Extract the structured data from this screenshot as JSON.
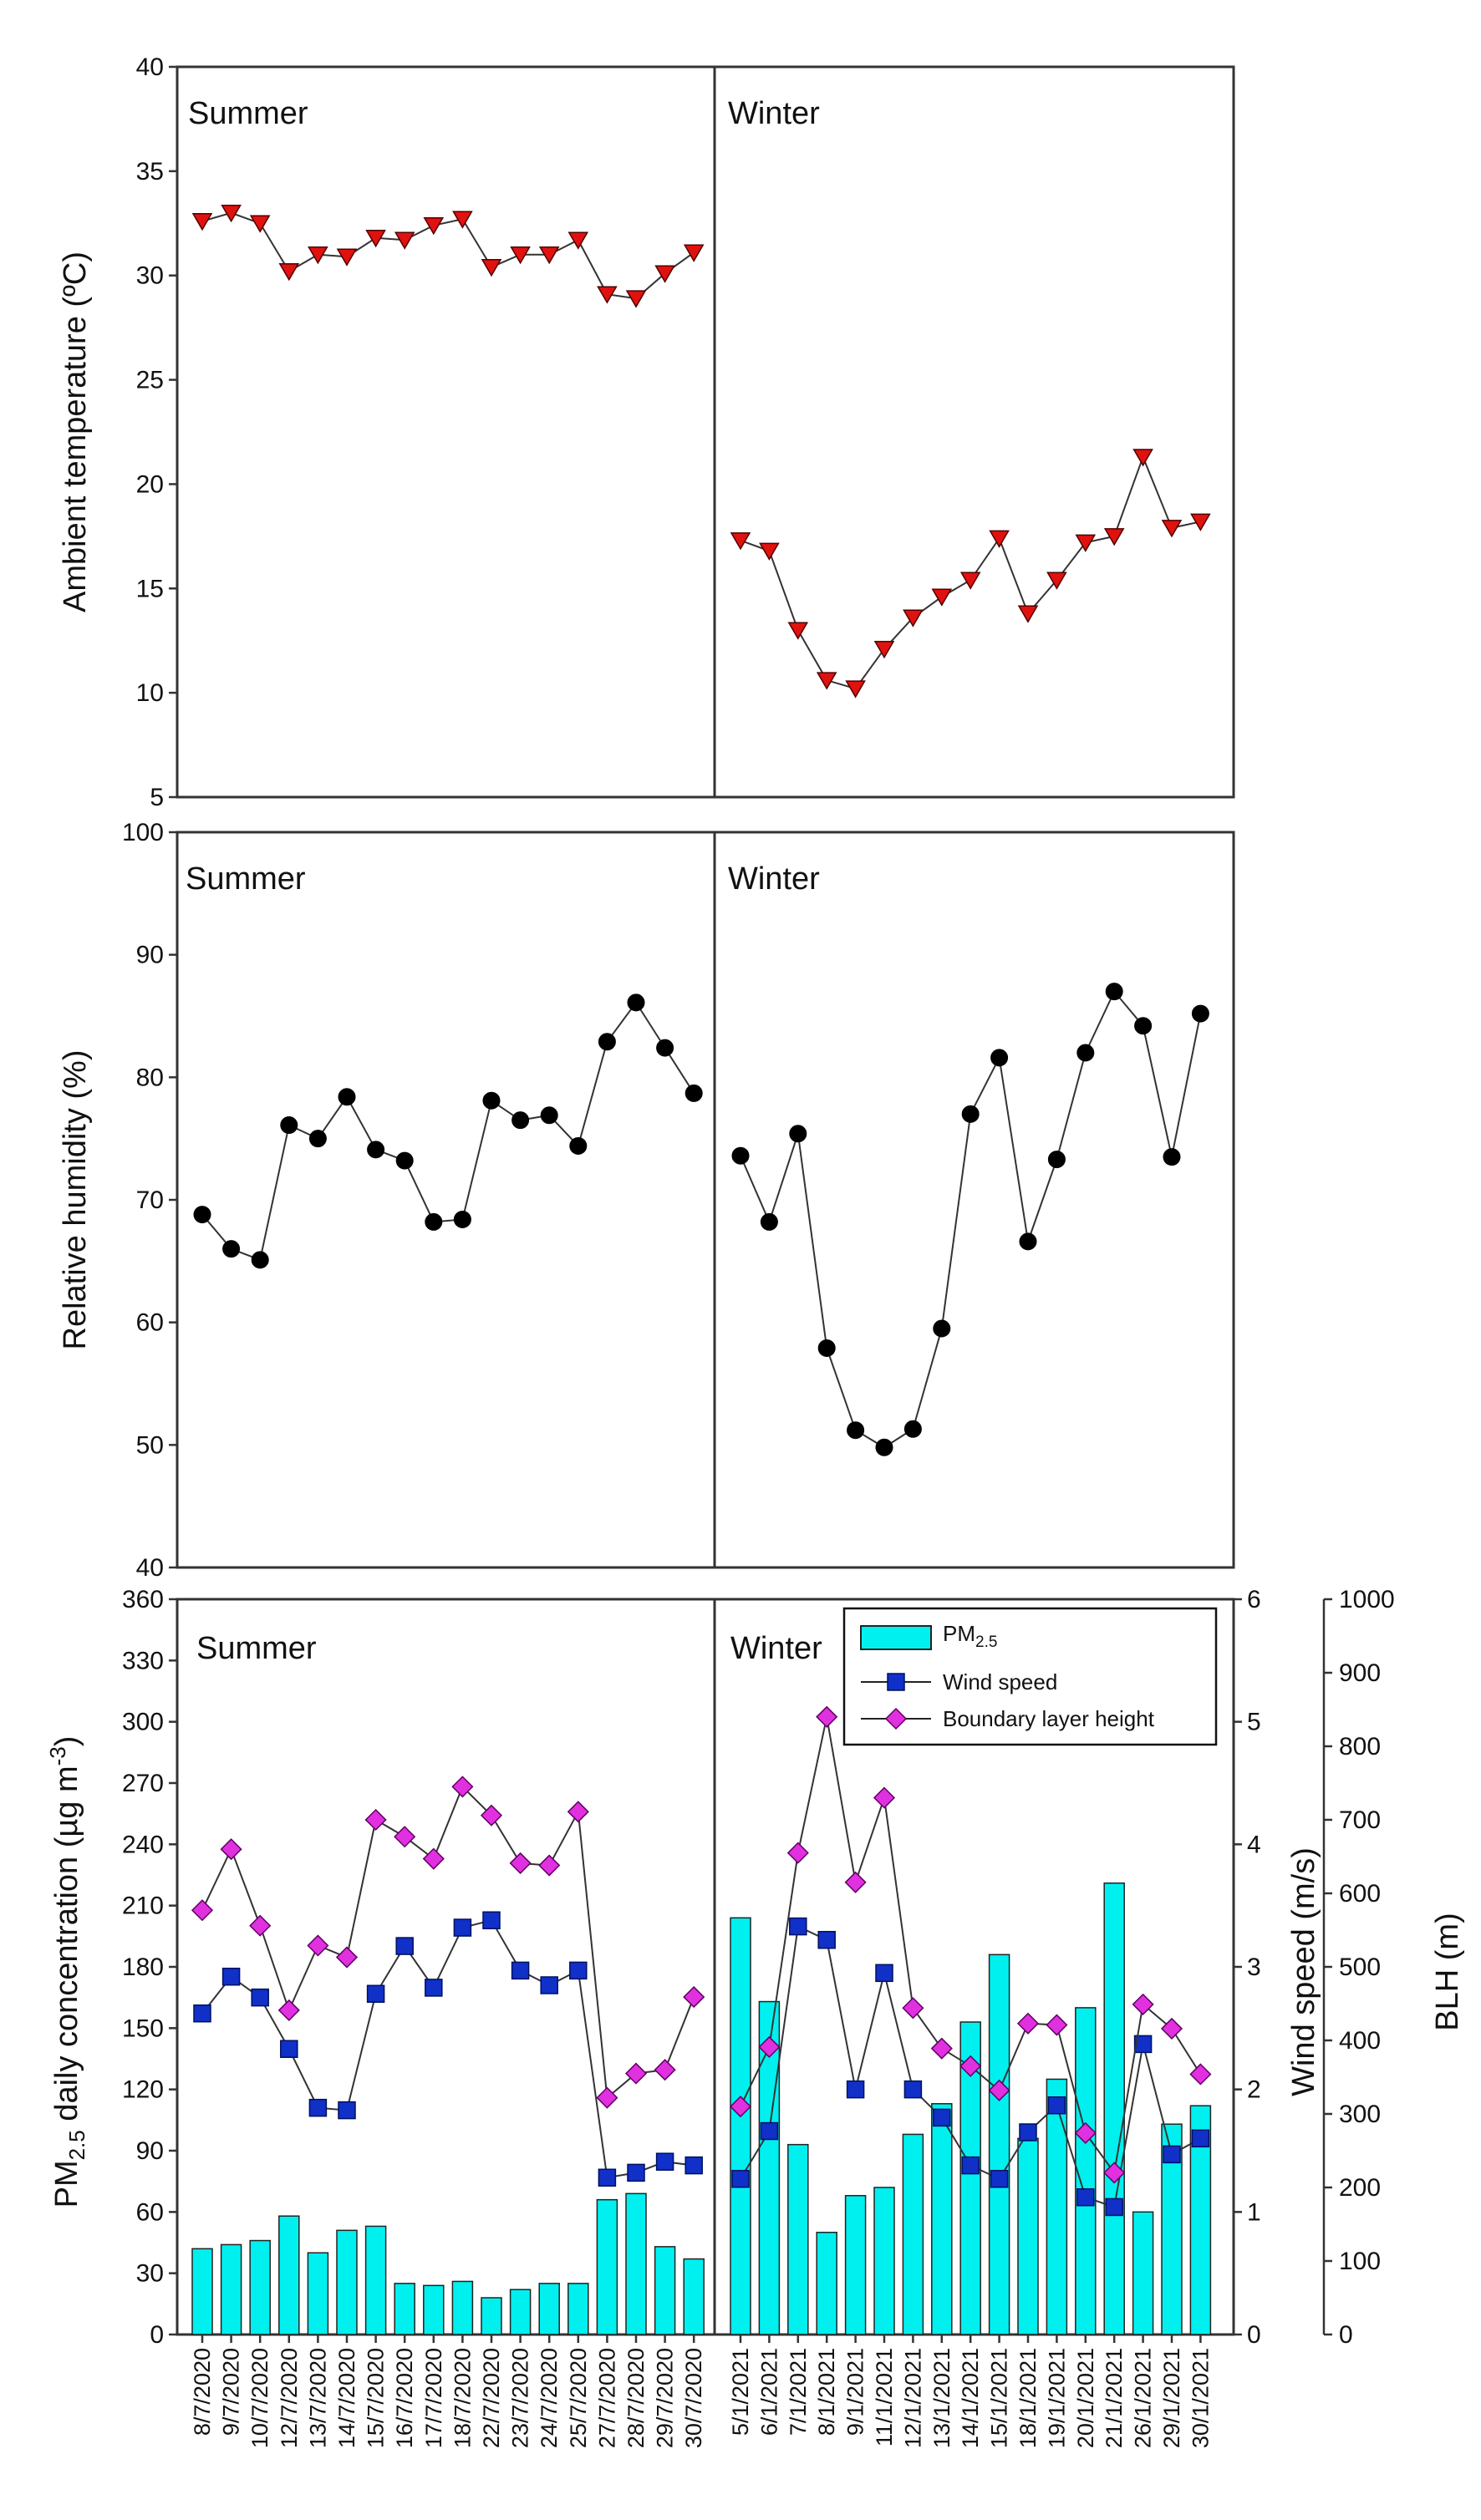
{
  "chart_data": [
    {
      "type": "line",
      "panel": "top",
      "ylabel": "Ambient temperature (ºC)",
      "ylim": [
        5,
        40
      ],
      "yticks": [
        5,
        10,
        15,
        20,
        25,
        30,
        35,
        40
      ],
      "season_labels": [
        "Summer",
        "Winter"
      ],
      "series": [
        {
          "name": "Ambient temperature",
          "marker": "triangle-down",
          "color": "#e0120f",
          "summer": [
            32.6,
            33.0,
            32.5,
            30.2,
            31.0,
            30.9,
            31.8,
            31.7,
            32.4,
            32.7,
            30.4,
            31.0,
            31.0,
            31.7,
            29.1,
            28.9,
            30.1,
            31.1
          ],
          "winter": [
            17.3,
            16.8,
            13.0,
            10.6,
            10.2,
            12.1,
            13.6,
            14.6,
            15.4,
            17.4,
            13.8,
            15.4,
            17.2,
            17.5,
            21.3,
            17.9,
            18.2
          ]
        }
      ]
    },
    {
      "type": "line",
      "panel": "middle",
      "ylabel": "Relative humidity (%)",
      "ylim": [
        40,
        100
      ],
      "yticks": [
        40,
        50,
        60,
        70,
        80,
        90,
        100
      ],
      "season_labels": [
        "Summer",
        "Winter"
      ],
      "series": [
        {
          "name": "Relative humidity",
          "marker": "circle",
          "color": "#000000",
          "summer": [
            68.8,
            66.0,
            65.1,
            76.1,
            75.0,
            78.4,
            74.1,
            73.2,
            68.2,
            68.4,
            78.1,
            76.5,
            76.9,
            74.4,
            82.9,
            86.1,
            82.4,
            78.7
          ],
          "winter": [
            73.6,
            68.2,
            75.4,
            57.9,
            51.2,
            49.8,
            51.3,
            59.5,
            77.0,
            81.6,
            66.6,
            73.3,
            82.0,
            87.0,
            84.2,
            73.5,
            85.2
          ]
        }
      ]
    },
    {
      "type": "bar",
      "panel": "bottom",
      "ylabel": "PM2.5 daily concentration (µg m-3)",
      "ylabel_parts": [
        "PM",
        "2.5",
        " daily concentration (µg m",
        "-3",
        ")"
      ],
      "ylim": [
        0,
        360
      ],
      "yticks": [
        0,
        30,
        60,
        90,
        120,
        150,
        180,
        210,
        240,
        270,
        300,
        330,
        360
      ],
      "y2label": "Wind speed (m/s)",
      "y2lim": [
        0,
        6
      ],
      "y2ticks": [
        0,
        1,
        2,
        3,
        4,
        5,
        6
      ],
      "y3label": "BLH (m)",
      "y3lim": [
        0,
        1000
      ],
      "y3ticks": [
        0,
        100,
        200,
        300,
        400,
        500,
        600,
        700,
        800,
        900,
        1000
      ],
      "season_labels": [
        "Summer",
        "Winter"
      ],
      "categories_summer": [
        "8/7/2020",
        "9/7/2020",
        "10/7/2020",
        "12/7/2020",
        "13/7/2020",
        "14/7/2020",
        "15/7/2020",
        "16/7/2020",
        "17/7/2020",
        "18/7/2020",
        "22/7/2020",
        "23/7/2020",
        "24/7/2020",
        "25/7/2020",
        "27/7/2020",
        "28/7/2020",
        "29/7/2020",
        "30/7/2020"
      ],
      "categories_winter": [
        "5/1/2021",
        "6/1/2021",
        "7/1/2021",
        "8/1/2021",
        "9/1/2021",
        "11/1/2021",
        "12/1/2021",
        "13/1/2021",
        "14/1/2021",
        "15/1/2021",
        "18/1/2021",
        "19/1/2021",
        "20/1/2021",
        "21/1/2021",
        "26/1/2021",
        "29/1/2021",
        "30/1/2021"
      ],
      "legend": {
        "pm_label": "PM",
        "pm_sub": "2.5",
        "wind_label": "Wind speed",
        "blh_label": "Boundary layer height"
      },
      "series": [
        {
          "name": "PM2.5",
          "axis": "left",
          "color": "#00f0f0",
          "summer": [
            42,
            44,
            46,
            58,
            40,
            51,
            53,
            25,
            24,
            26,
            18,
            22,
            25,
            25,
            66,
            69,
            43,
            37
          ],
          "winter": [
            204,
            163,
            93,
            50,
            68,
            72,
            98,
            113,
            153,
            186,
            96,
            125,
            160,
            221,
            60,
            103,
            112
          ]
        },
        {
          "name": "Wind speed",
          "axis": "right-1",
          "color": "#1030c8",
          "summer": [
            2.62,
            2.92,
            2.75,
            2.33,
            1.85,
            1.83,
            2.78,
            3.17,
            2.83,
            3.32,
            3.38,
            2.97,
            2.85,
            2.97,
            1.28,
            1.32,
            1.41,
            1.38
          ],
          "winter": [
            1.27,
            1.66,
            3.33,
            3.22,
            2.0,
            2.95,
            2.0,
            1.77,
            1.38,
            1.27,
            1.65,
            1.87,
            1.12,
            1.04,
            2.37,
            1.47,
            1.6
          ]
        },
        {
          "name": "Boundary layer height",
          "axis": "right-2",
          "color": "#e030e0",
          "summer": [
            577,
            660,
            556,
            441,
            529,
            513,
            700,
            677,
            647,
            745,
            706,
            641,
            638,
            711,
            322,
            355,
            360,
            459
          ],
          "winter": [
            310,
            391,
            655,
            840,
            615,
            730,
            444,
            389,
            365,
            332,
            423,
            421,
            274,
            220,
            449,
            416,
            354
          ]
        }
      ]
    }
  ]
}
